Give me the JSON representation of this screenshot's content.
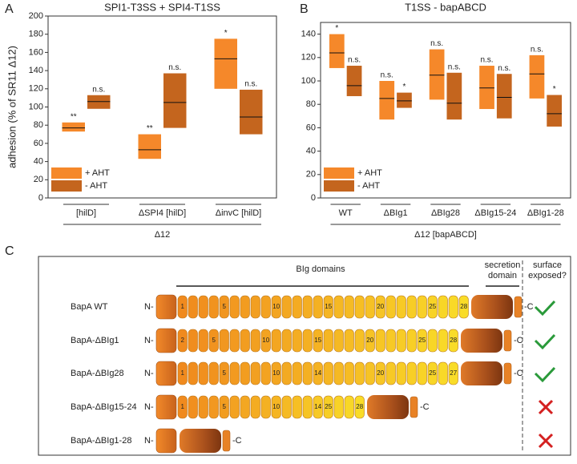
{
  "panel_labels": [
    "A",
    "B",
    "C"
  ],
  "chart_data": [
    {
      "type": "box",
      "title": "SPI1-T3SS + SPI4-T1SS",
      "y_label": "adhesion (% of SR11 Δ12)",
      "categories": [
        "[hilD]",
        "ΔSPI4 [hilD]",
        "ΔinvC [hilD]"
      ],
      "group_label": "Δ12",
      "ylim": [
        0,
        200
      ],
      "yticks": [
        0,
        20,
        40,
        60,
        80,
        100,
        120,
        140,
        160,
        180,
        200
      ],
      "legend": "lower left",
      "series": [
        {
          "name": "+ AHT",
          "color": "#f5882a",
          "low": [
            73,
            43,
            120
          ],
          "high": [
            83,
            70,
            175
          ],
          "median": [
            77,
            53,
            153
          ],
          "annotations": [
            "**",
            "**",
            "*"
          ]
        },
        {
          "name": "- AHT",
          "color": "#c4651e",
          "low": [
            98,
            77,
            70
          ],
          "high": [
            113,
            137,
            119
          ],
          "median": [
            106,
            105,
            89
          ],
          "annotations": [
            "n.s.",
            "n.s.",
            "n.s."
          ]
        }
      ]
    },
    {
      "type": "box",
      "title": "T1SS - bapABCD",
      "categories": [
        "WT",
        "ΔBIg1",
        "ΔBIg28",
        "ΔBIg15-24",
        "ΔBIg1-28"
      ],
      "group_label": "Δ12 [bapABCD]",
      "ylim": [
        0,
        150
      ],
      "yticks": [
        0,
        20,
        40,
        60,
        80,
        100,
        120,
        140
      ],
      "legend": "lower left",
      "series": [
        {
          "name": "+ AHT",
          "color": "#f5882a",
          "low": [
            111,
            67,
            84,
            76,
            85
          ],
          "high": [
            140,
            100,
            127,
            113,
            122
          ],
          "median": [
            124,
            85,
            105,
            94,
            106
          ],
          "annotations": [
            "*",
            "n.s.",
            "n.s.",
            "n.s.",
            "n.s."
          ]
        },
        {
          "name": "- AHT",
          "color": "#c4651e",
          "low": [
            87,
            77,
            67,
            68,
            61
          ],
          "high": [
            113,
            90,
            107,
            106,
            88
          ],
          "median": [
            96,
            83,
            81,
            86,
            72
          ],
          "annotations": [
            "n.s.",
            "*",
            "n.s.",
            "n.s.",
            "*"
          ]
        }
      ]
    }
  ],
  "diagram": {
    "domains_header": "BIg domains",
    "secretion_header": [
      "secretion",
      "domain"
    ],
    "exposed_header": [
      "surface",
      "exposed?"
    ],
    "rows": [
      {
        "label": "BapA WT",
        "n_label": "N-",
        "c_label": "-C",
        "exposed": true,
        "domains": [
          "1",
          null,
          null,
          null,
          "5",
          null,
          null,
          null,
          null,
          "10",
          null,
          null,
          null,
          null,
          "15",
          null,
          null,
          null,
          null,
          "20",
          null,
          null,
          null,
          null,
          "25",
          null,
          null,
          "28"
        ]
      },
      {
        "label": "BapA-ΔBIg1",
        "n_label": "N-",
        "c_label": "-C",
        "exposed": true,
        "domains": [
          "2",
          null,
          null,
          "5",
          null,
          null,
          null,
          null,
          "10",
          null,
          null,
          null,
          null,
          "15",
          null,
          null,
          null,
          null,
          "20",
          null,
          null,
          null,
          null,
          "25",
          null,
          null,
          "28"
        ]
      },
      {
        "label": "BapA-ΔBIg28",
        "n_label": "N-",
        "c_label": "-C",
        "exposed": true,
        "domains": [
          "1",
          null,
          null,
          null,
          "5",
          null,
          null,
          null,
          null,
          "10",
          null,
          null,
          null,
          "14",
          null,
          null,
          null,
          null,
          null,
          "20",
          null,
          null,
          null,
          null,
          "25",
          null,
          "27"
        ]
      },
      {
        "label": "BapA-ΔBIg15-24",
        "n_label": "N-",
        "c_label": "-C",
        "exposed": false,
        "domains": [
          "1",
          null,
          null,
          null,
          "5",
          null,
          null,
          null,
          null,
          "10",
          null,
          null,
          null,
          "14",
          "25",
          null,
          null,
          "28"
        ]
      },
      {
        "label": "BapA-ΔBIg1-28",
        "n_label": "N-",
        "c_label": "-C",
        "exposed": false,
        "domains": []
      }
    ]
  }
}
